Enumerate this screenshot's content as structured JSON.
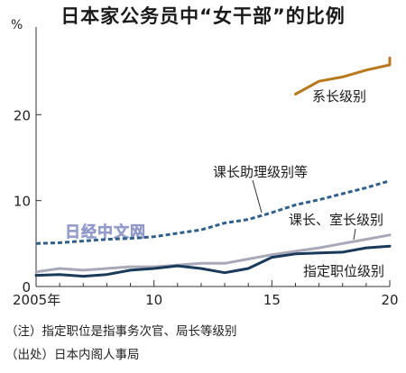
{
  "chart_data": {
    "type": "line",
    "title": "日本家公务员中“女干部”的比例",
    "unit_label": "%",
    "x": [
      2005,
      2006,
      2007,
      2008,
      2009,
      2010,
      2011,
      2012,
      2013,
      2014,
      2015,
      2016,
      2017,
      2018,
      2019,
      2020
    ],
    "x_tick_labels": [
      "2005年",
      "10",
      "15",
      "20"
    ],
    "x_tick_values": [
      2005,
      2010,
      2015,
      2020
    ],
    "ylim": [
      0,
      30
    ],
    "y_ticks": [
      0,
      10,
      20
    ],
    "grid": false,
    "series": [
      {
        "name": "系长级别",
        "color": "#b8791e",
        "style": "solid",
        "x": [
          2016,
          2017,
          2018,
          2019,
          2020,
          2021
        ],
        "values": [
          22.4,
          23.9,
          24.4,
          25.2,
          25.8,
          26.6
        ]
      },
      {
        "name": "课长助理级别等",
        "color": "#2f5f8a",
        "style": "dashed",
        "x": [
          2005,
          2006,
          2007,
          2008,
          2009,
          2010,
          2011,
          2012,
          2013,
          2014,
          2015,
          2016,
          2017,
          2018,
          2019,
          2020
        ],
        "values": [
          5.0,
          5.1,
          5.3,
          5.5,
          5.6,
          5.8,
          6.2,
          6.6,
          7.4,
          7.8,
          8.6,
          9.5,
          10.1,
          10.8,
          11.5,
          12.3
        ]
      },
      {
        "name": "课长、室长级别",
        "color": "#a8a8b8",
        "style": "solid",
        "x": [
          2005,
          2006,
          2007,
          2008,
          2009,
          2010,
          2011,
          2012,
          2013,
          2014,
          2015,
          2016,
          2017,
          2018,
          2019,
          2020
        ],
        "values": [
          1.7,
          2.1,
          1.9,
          2.1,
          2.3,
          2.3,
          2.5,
          2.7,
          2.7,
          3.2,
          3.7,
          4.1,
          4.5,
          5.0,
          5.5,
          6.0
        ]
      },
      {
        "name": "指定职位级别",
        "color": "#1a3a5c",
        "style": "solid",
        "x": [
          2005,
          2006,
          2007,
          2008,
          2009,
          2010,
          2011,
          2012,
          2013,
          2014,
          2015,
          2016,
          2017,
          2018,
          2019,
          2020
        ],
        "values": [
          1.3,
          1.4,
          1.2,
          1.4,
          1.9,
          2.1,
          2.4,
          2.1,
          1.6,
          2.1,
          3.4,
          3.8,
          3.9,
          4.0,
          4.5,
          4.7
        ]
      }
    ]
  },
  "watermark": "日经中文网",
  "notes": {
    "note1": "（注）指定职位是指事务次官、局长等级别",
    "note2": "（出处）日本内阁人事局"
  }
}
